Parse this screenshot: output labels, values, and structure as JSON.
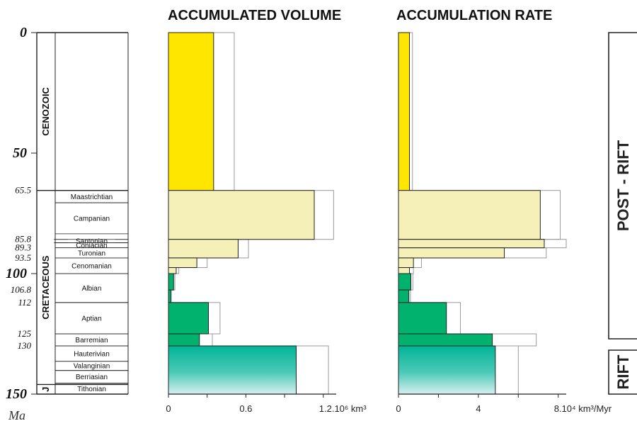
{
  "chart_data": [
    {
      "type": "bar",
      "title": "ACCUMULATED VOLUME",
      "orientation": "horizontal",
      "y_axis": "age (Ma)",
      "xlim": [
        0,
        1.3
      ],
      "x_ticks": [
        "0",
        "0.6",
        "1.2.10⁶ km³"
      ],
      "x_tick_values": [
        0,
        0.6,
        1.2
      ],
      "intervals": [
        {
          "top": 0,
          "base": 65.5,
          "value": 0.35,
          "outline": 0.51,
          "fill": "#ffe600"
        },
        {
          "top": 65.5,
          "base": 85.8,
          "value": 1.13,
          "outline": 1.28,
          "fill": "#f4f0b8"
        },
        {
          "top": 85.8,
          "base": 93.5,
          "value": 0.54,
          "outline": 0.62,
          "fill": "#f4f0b8"
        },
        {
          "top": 93.5,
          "base": 97.5,
          "value": 0.22,
          "outline": 0.3,
          "fill": "#f4f0b8"
        },
        {
          "top": 97.5,
          "base": 100,
          "value": 0.06,
          "outline": 0.08,
          "fill": "#f4f0b8"
        },
        {
          "top": 100,
          "base": 106.8,
          "value": 0.04,
          "outline": 0.05,
          "fill": "#00b26e"
        },
        {
          "top": 106.8,
          "base": 112,
          "value": 0.02,
          "outline": 0.02,
          "fill": "#00b26e"
        },
        {
          "top": 112,
          "base": 125,
          "value": 0.31,
          "outline": 0.4,
          "fill": "#00b26e"
        },
        {
          "top": 125,
          "base": 130,
          "value": 0.24,
          "outline": 0.34,
          "fill": "#00b26e"
        },
        {
          "top": 130,
          "base": 150,
          "value": 0.99,
          "outline": 1.24,
          "fill": "rift"
        }
      ]
    },
    {
      "type": "bar",
      "title": "ACCUMULATION RATE",
      "orientation": "horizontal",
      "y_axis": "age (Ma)",
      "xlim": [
        0,
        8.4
      ],
      "x_ticks": [
        "0",
        "4",
        "8.10⁴ km³/Myr"
      ],
      "x_tick_values": [
        0,
        4,
        8
      ],
      "intervals": [
        {
          "top": 0,
          "base": 65.5,
          "value": 0.55,
          "outline": 0.7,
          "fill": "#ffe600"
        },
        {
          "top": 65.5,
          "base": 85.8,
          "value": 7.1,
          "outline": 8.1,
          "fill": "#f4f0b8"
        },
        {
          "top": 85.8,
          "base": 89.3,
          "value": 7.3,
          "outline": 8.4,
          "fill": "#f4f0b8"
        },
        {
          "top": 89.3,
          "base": 93.5,
          "value": 5.3,
          "outline": 7.4,
          "fill": "#f4f0b8"
        },
        {
          "top": 93.5,
          "base": 97.5,
          "value": 0.75,
          "outline": 1.15,
          "fill": "#f4f0b8"
        },
        {
          "top": 97.5,
          "base": 100,
          "value": 0.55,
          "outline": 0.75,
          "fill": "#f4f0b8"
        },
        {
          "top": 100,
          "base": 106.8,
          "value": 0.62,
          "outline": 0.72,
          "fill": "#00b26e"
        },
        {
          "top": 106.8,
          "base": 112,
          "value": 0.52,
          "outline": 0.6,
          "fill": "#00b26e"
        },
        {
          "top": 112,
          "base": 125,
          "value": 2.4,
          "outline": 3.1,
          "fill": "#00b26e"
        },
        {
          "top": 125,
          "base": 130,
          "value": 4.7,
          "outline": 6.9,
          "fill": "#00b26e"
        },
        {
          "top": 130,
          "base": 150,
          "value": 4.85,
          "outline": 6.0,
          "fill": "rift"
        }
      ]
    }
  ],
  "stratigraphy": {
    "unit_label": "Ma",
    "ages": [
      {
        "label": "0",
        "value": 0,
        "major": true
      },
      {
        "label": "50",
        "value": 50,
        "major": true
      },
      {
        "label": "65.5",
        "value": 65.5,
        "major": false
      },
      {
        "label": "85.8",
        "value": 85.8,
        "major": false
      },
      {
        "label": "89.3",
        "value": 89.3,
        "major": false
      },
      {
        "label": "93.5",
        "value": 93.5,
        "major": false
      },
      {
        "label": "100",
        "value": 100,
        "major": true
      },
      {
        "label": "106.8",
        "value": 106.8,
        "major": false
      },
      {
        "label": "112",
        "value": 112,
        "major": false
      },
      {
        "label": "125",
        "value": 125,
        "major": false
      },
      {
        "label": "130",
        "value": 130,
        "major": false
      },
      {
        "label": "150",
        "value": 150,
        "major": true
      }
    ],
    "eras": [
      {
        "label": "CENOZOIC",
        "top": 0,
        "base": 65.5
      },
      {
        "label": "CRETACEOUS",
        "top": 65.5,
        "base": 146
      },
      {
        "label": "J",
        "top": 146,
        "base": 150
      }
    ],
    "stages": [
      {
        "label": "Maastrichtian",
        "top": 65.5,
        "base": 70.6
      },
      {
        "label": "Campanian",
        "top": 70.6,
        "base": 83.5
      },
      {
        "label": "Santonian",
        "top": 85.8,
        "base": 87.2
      },
      {
        "label": "Coniacian",
        "top": 87.2,
        "base": 89.3
      },
      {
        "label": "Turonian",
        "top": 89.3,
        "base": 93.5
      },
      {
        "label": "Cenomanian",
        "top": 93.5,
        "base": 100
      },
      {
        "label": "Albian",
        "top": 100,
        "base": 112
      },
      {
        "label": "Aptian",
        "top": 112,
        "base": 125
      },
      {
        "label": "Barremian",
        "top": 125,
        "base": 130
      },
      {
        "label": "Hauterivian",
        "top": 130,
        "base": 136.4
      },
      {
        "label": "Valanginian",
        "top": 136.4,
        "base": 140.2
      },
      {
        "label": "Berriasian",
        "top": 140.2,
        "base": 145.5
      },
      {
        "label": "Tithonian",
        "top": 145.5,
        "base": 150
      }
    ]
  },
  "phases": [
    {
      "label": "POST - RIFT",
      "top": 0,
      "base": 130
    },
    {
      "label": "RIFT",
      "top": 130,
      "base": 150
    }
  ]
}
